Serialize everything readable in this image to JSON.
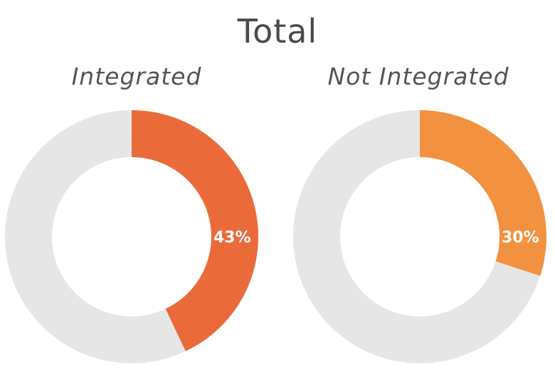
{
  "chart_data": {
    "type": "pie",
    "title": "Total",
    "charts": [
      {
        "label": "Integrated",
        "value": 43,
        "value_label": "43%",
        "color": "#EA6A3A",
        "remainder_color": "#E6E6E6"
      },
      {
        "label": "Not Integrated",
        "value": 30,
        "value_label": "30%",
        "color": "#F2913F",
        "remainder_color": "#E6E6E6"
      }
    ]
  }
}
